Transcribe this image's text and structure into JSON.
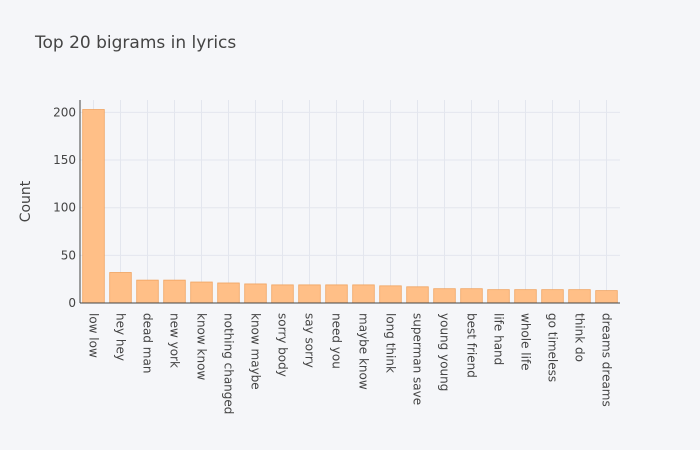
{
  "chart_data": {
    "type": "bar",
    "title": "Top 20 bigrams in lyrics",
    "xlabel": "",
    "ylabel": "Count",
    "categories": [
      "low low",
      "hey hey",
      "dead man",
      "new york",
      "know know",
      "nothing changed",
      "know maybe",
      "sorry body",
      "say sorry",
      "need you",
      "maybe know",
      "long think",
      "superman save",
      "young young",
      "best friend",
      "life hand",
      "whole life",
      "go timeless",
      "think do",
      "dreams dreams"
    ],
    "values": [
      203,
      32,
      24,
      24,
      22,
      21,
      20,
      19,
      19,
      19,
      19,
      18,
      17,
      15,
      15,
      14,
      14,
      14,
      14,
      13
    ],
    "ylim": [
      0,
      213
    ],
    "yticks": [
      0,
      50,
      100,
      150,
      200
    ],
    "grid": true,
    "bar_color": "#ffbf87",
    "bar_edge_color": "#f0a35f"
  }
}
